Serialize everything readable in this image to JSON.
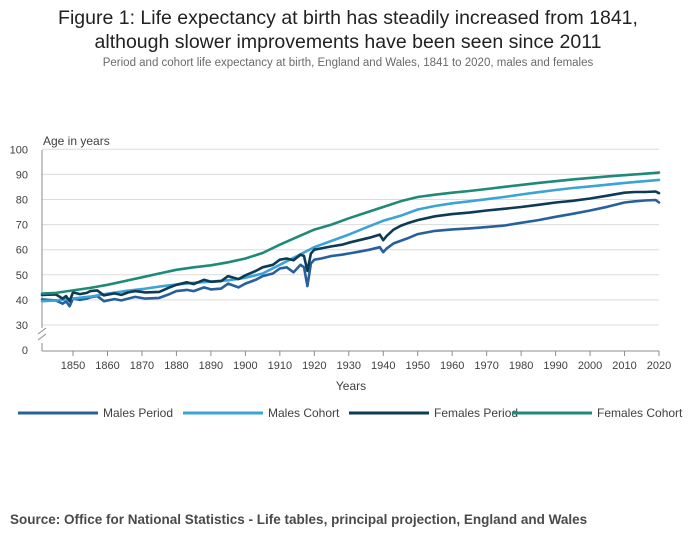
{
  "header": {
    "title_line1": "Figure 1: Life expectancy at birth has steadily increased from 1841,",
    "title_line2": "although slower improvements have been seen since 2011",
    "subtitle": "Period and cohort life expectancy at birth, England and Wales, 1841 to 2020, males and females"
  },
  "source": "Source: Office for National Statistics - Life tables, principal projection, England and Wales",
  "chart_data": {
    "type": "line",
    "title": "",
    "xlabel": "Years",
    "ylabel": "Age in years",
    "xlim": [
      1841,
      2020
    ],
    "ylim": [
      0,
      100
    ],
    "axis_break": true,
    "x_ticks": [
      1850,
      1860,
      1870,
      1880,
      1890,
      1900,
      1910,
      1920,
      1930,
      1940,
      1950,
      1960,
      1970,
      1980,
      1990,
      2000,
      2010,
      2020
    ],
    "y_ticks": [
      0,
      30,
      40,
      50,
      60,
      70,
      80,
      90,
      100
    ],
    "grid": "horizontal",
    "legend_position": "bottom",
    "series": [
      {
        "name": "Males Period",
        "color": "#27609c",
        "points": [
          [
            1841,
            40.2
          ],
          [
            1845,
            39.8
          ],
          [
            1847,
            38.5
          ],
          [
            1848,
            39.5
          ],
          [
            1849,
            37.5
          ],
          [
            1850,
            40.5
          ],
          [
            1852,
            40
          ],
          [
            1854,
            40.5
          ],
          [
            1855,
            41
          ],
          [
            1857,
            41.5
          ],
          [
            1859,
            39.5
          ],
          [
            1862,
            40.3
          ],
          [
            1864,
            39.8
          ],
          [
            1866,
            40.5
          ],
          [
            1868,
            41.2
          ],
          [
            1871,
            40.5
          ],
          [
            1875,
            40.8
          ],
          [
            1878,
            42.3
          ],
          [
            1880,
            43.5
          ],
          [
            1883,
            44
          ],
          [
            1885,
            43.5
          ],
          [
            1888,
            45
          ],
          [
            1890,
            44.2
          ],
          [
            1893,
            44.5
          ],
          [
            1895,
            46.5
          ],
          [
            1898,
            45
          ],
          [
            1900,
            46.5
          ],
          [
            1903,
            48
          ],
          [
            1905,
            49.5
          ],
          [
            1908,
            50.5
          ],
          [
            1910,
            52.5
          ],
          [
            1912,
            53
          ],
          [
            1914,
            51
          ],
          [
            1916,
            54
          ],
          [
            1917,
            53
          ],
          [
            1918,
            45.5
          ],
          [
            1919,
            54.5
          ],
          [
            1920,
            56
          ],
          [
            1922,
            56.5
          ],
          [
            1925,
            57.5
          ],
          [
            1928,
            58
          ],
          [
            1930,
            58.5
          ],
          [
            1933,
            59.2
          ],
          [
            1936,
            60
          ],
          [
            1939,
            61
          ],
          [
            1940,
            59
          ],
          [
            1941,
            60.5
          ],
          [
            1943,
            62.5
          ],
          [
            1945,
            63.5
          ],
          [
            1947,
            64.5
          ],
          [
            1950,
            66.2
          ],
          [
            1955,
            67.5
          ],
          [
            1960,
            68.1
          ],
          [
            1965,
            68.5
          ],
          [
            1970,
            69
          ],
          [
            1975,
            69.6
          ],
          [
            1980,
            70.7
          ],
          [
            1985,
            71.8
          ],
          [
            1990,
            73.1
          ],
          [
            1995,
            74.3
          ],
          [
            2000,
            75.6
          ],
          [
            2005,
            77.1
          ],
          [
            2010,
            78.8
          ],
          [
            2013,
            79.3
          ],
          [
            2016,
            79.6
          ],
          [
            2019,
            79.8
          ],
          [
            2020,
            78.8
          ]
        ]
      },
      {
        "name": "Males Cohort",
        "color": "#3ba3d6",
        "points": [
          [
            1841,
            39.5
          ],
          [
            1845,
            39.8
          ],
          [
            1850,
            40.5
          ],
          [
            1855,
            41.3
          ],
          [
            1860,
            42.5
          ],
          [
            1865,
            43.5
          ],
          [
            1870,
            44.3
          ],
          [
            1875,
            45.3
          ],
          [
            1880,
            46.1
          ],
          [
            1885,
            46.8
          ],
          [
            1890,
            47.3
          ],
          [
            1895,
            47.8
          ],
          [
            1900,
            48.8
          ],
          [
            1905,
            50.5
          ],
          [
            1910,
            54
          ],
          [
            1915,
            57.5
          ],
          [
            1920,
            61
          ],
          [
            1925,
            63.5
          ],
          [
            1930,
            66
          ],
          [
            1935,
            68.8
          ],
          [
            1940,
            71.5
          ],
          [
            1945,
            73.5
          ],
          [
            1950,
            76
          ],
          [
            1955,
            77.4
          ],
          [
            1960,
            78.5
          ],
          [
            1965,
            79.3
          ],
          [
            1970,
            80.1
          ],
          [
            1975,
            81
          ],
          [
            1980,
            82
          ],
          [
            1985,
            82.9
          ],
          [
            1990,
            83.8
          ],
          [
            1995,
            84.6
          ],
          [
            2000,
            85.2
          ],
          [
            2005,
            85.9
          ],
          [
            2010,
            86.6
          ],
          [
            2015,
            87.2
          ],
          [
            2020,
            87.8
          ]
        ]
      },
      {
        "name": "Females Period",
        "color": "#0d3a55",
        "points": [
          [
            1841,
            42
          ],
          [
            1845,
            42.2
          ],
          [
            1847,
            40.5
          ],
          [
            1848,
            41.5
          ],
          [
            1849,
            39.5
          ],
          [
            1850,
            43
          ],
          [
            1852,
            42.3
          ],
          [
            1854,
            42.8
          ],
          [
            1855,
            43.5
          ],
          [
            1857,
            43.8
          ],
          [
            1859,
            41.8
          ],
          [
            1862,
            42.6
          ],
          [
            1864,
            42
          ],
          [
            1866,
            43
          ],
          [
            1868,
            43.5
          ],
          [
            1871,
            43
          ],
          [
            1875,
            43.2
          ],
          [
            1878,
            45
          ],
          [
            1880,
            46
          ],
          [
            1883,
            47
          ],
          [
            1885,
            46.3
          ],
          [
            1888,
            48
          ],
          [
            1890,
            47.2
          ],
          [
            1893,
            47.5
          ],
          [
            1895,
            49.5
          ],
          [
            1898,
            48.3
          ],
          [
            1900,
            49.8
          ],
          [
            1903,
            51.5
          ],
          [
            1905,
            53
          ],
          [
            1908,
            54
          ],
          [
            1910,
            56
          ],
          [
            1912,
            56.5
          ],
          [
            1914,
            55.8
          ],
          [
            1916,
            58
          ],
          [
            1917,
            57.5
          ],
          [
            1918,
            51.5
          ],
          [
            1919,
            58.5
          ],
          [
            1920,
            60
          ],
          [
            1922,
            60.5
          ],
          [
            1925,
            61.3
          ],
          [
            1928,
            62
          ],
          [
            1930,
            62.8
          ],
          [
            1933,
            63.8
          ],
          [
            1936,
            64.8
          ],
          [
            1939,
            66
          ],
          [
            1940,
            63.8
          ],
          [
            1941,
            65.5
          ],
          [
            1943,
            68
          ],
          [
            1945,
            69.5
          ],
          [
            1947,
            70.5
          ],
          [
            1950,
            71.8
          ],
          [
            1955,
            73.3
          ],
          [
            1960,
            74.2
          ],
          [
            1965,
            74.8
          ],
          [
            1970,
            75.6
          ],
          [
            1975,
            76.3
          ],
          [
            1980,
            77
          ],
          [
            1985,
            77.9
          ],
          [
            1990,
            78.8
          ],
          [
            1995,
            79.5
          ],
          [
            2000,
            80.4
          ],
          [
            2005,
            81.5
          ],
          [
            2010,
            82.7
          ],
          [
            2013,
            83
          ],
          [
            2016,
            83
          ],
          [
            2019,
            83.2
          ],
          [
            2020,
            82.5
          ]
        ]
      },
      {
        "name": "Females Cohort",
        "color": "#1f8a78",
        "points": [
          [
            1841,
            42.5
          ],
          [
            1845,
            42.8
          ],
          [
            1850,
            43.8
          ],
          [
            1855,
            44.8
          ],
          [
            1860,
            46
          ],
          [
            1865,
            47.5
          ],
          [
            1870,
            49
          ],
          [
            1875,
            50.5
          ],
          [
            1880,
            52
          ],
          [
            1885,
            53
          ],
          [
            1890,
            53.8
          ],
          [
            1895,
            55
          ],
          [
            1900,
            56.5
          ],
          [
            1905,
            58.7
          ],
          [
            1910,
            62
          ],
          [
            1915,
            65
          ],
          [
            1920,
            68
          ],
          [
            1925,
            70
          ],
          [
            1930,
            72.5
          ],
          [
            1935,
            74.8
          ],
          [
            1940,
            77
          ],
          [
            1945,
            79.3
          ],
          [
            1950,
            81
          ],
          [
            1955,
            81.9
          ],
          [
            1960,
            82.7
          ],
          [
            1965,
            83.4
          ],
          [
            1970,
            84.2
          ],
          [
            1975,
            85
          ],
          [
            1980,
            85.8
          ],
          [
            1985,
            86.6
          ],
          [
            1990,
            87.3
          ],
          [
            1995,
            88
          ],
          [
            2000,
            88.6
          ],
          [
            2005,
            89.2
          ],
          [
            2010,
            89.7
          ],
          [
            2015,
            90.2
          ],
          [
            2020,
            90.7
          ]
        ]
      }
    ]
  }
}
